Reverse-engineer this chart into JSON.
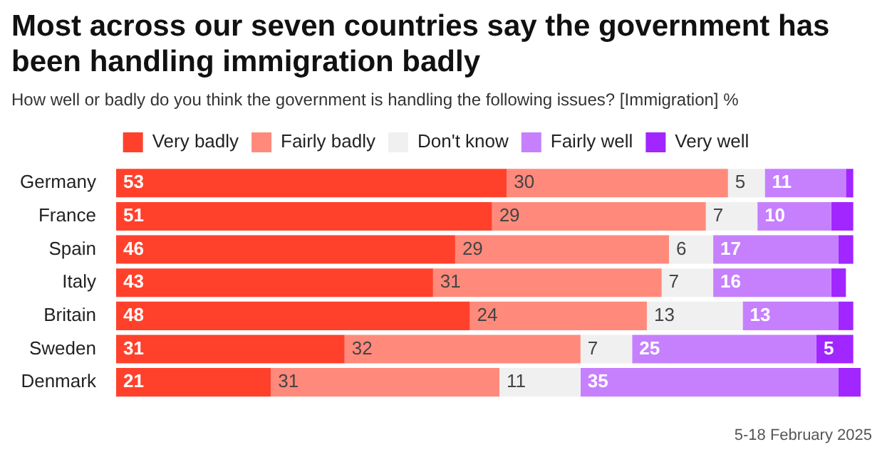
{
  "chart_data": {
    "type": "bar",
    "orientation": "horizontal",
    "stacked": true,
    "title": "Most across our seven countries say the government has been handling immigration badly",
    "subtitle": "How well or badly do you think the government is handling the following issues? [Immigration] %",
    "categories": [
      "Germany",
      "France",
      "Spain",
      "Italy",
      "Britain",
      "Sweden",
      "Denmark"
    ],
    "series": [
      {
        "name": "Very badly",
        "color": "#ff412c",
        "values": [
          53,
          51,
          46,
          43,
          48,
          31,
          21
        ],
        "value_labels": [
          "53",
          "51",
          "46",
          "43",
          "48",
          "31",
          "21"
        ]
      },
      {
        "name": "Fairly badly",
        "color": "#ff8a7c",
        "values": [
          30,
          29,
          29,
          31,
          24,
          32,
          31
        ],
        "value_labels": [
          "30",
          "29",
          "29",
          "31",
          "24",
          "32",
          "31"
        ]
      },
      {
        "name": "Don't know",
        "color": "#f0f0f0",
        "values": [
          5,
          7,
          6,
          7,
          13,
          7,
          11
        ],
        "value_labels": [
          "5",
          "7",
          "6",
          "7",
          "13",
          "7",
          "11"
        ]
      },
      {
        "name": "Fairly well",
        "color": "#c680fe",
        "values": [
          11,
          10,
          17,
          16,
          13,
          25,
          35
        ],
        "value_labels": [
          "11",
          "10",
          "17",
          "16",
          "13",
          "25",
          "35"
        ]
      },
      {
        "name": "Very well",
        "color": "#a126ff",
        "values": [
          1,
          3,
          2,
          2,
          2,
          5,
          3
        ],
        "value_labels": [
          null,
          null,
          null,
          null,
          null,
          "5",
          null
        ]
      }
    ],
    "legend": "top",
    "tick_labels": "y",
    "annotations": [
      "5-18 February 2025"
    ]
  }
}
